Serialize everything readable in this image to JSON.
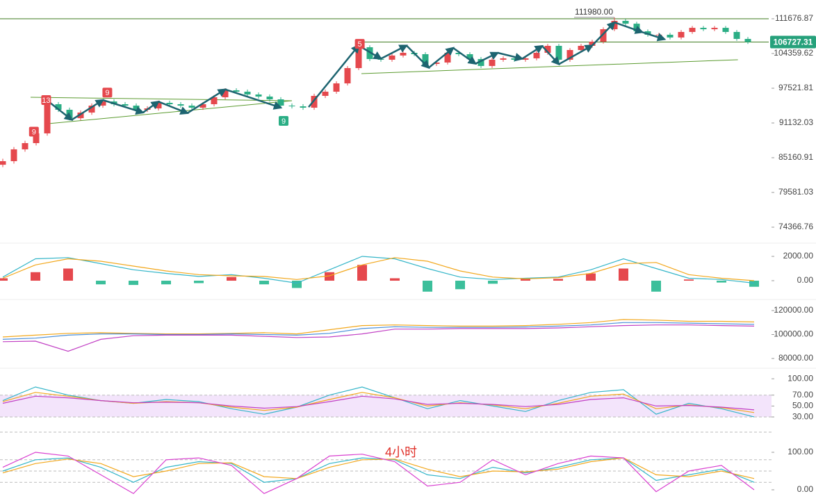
{
  "chart_data": [
    {
      "type": "candlestick",
      "open": [
        84000,
        84588,
        86560,
        87620,
        89300,
        94530,
        93510,
        91990,
        93000,
        94270,
        95040,
        94530,
        94270,
        93510,
        93760,
        94785,
        94530,
        94270,
        93890,
        94530,
        95820,
        97130,
        96870,
        96340,
        95950,
        95430,
        94270,
        94140,
        93890,
        96080,
        96870,
        98450,
        101430,
        105640,
        103240,
        103100,
        103950,
        104500,
        104220,
        102260,
        102540,
        104500,
        104220,
        103240,
        101850,
        103100,
        103380,
        103100,
        103380,
        104500,
        105930,
        103100,
        105070,
        105930,
        106800,
        109420,
        111220,
        110610,
        108980,
        108250,
        108250,
        107670,
        108840,
        109720,
        109420,
        109720,
        108840,
        107370
      ],
      "close": [
        84588,
        86560,
        87620,
        89300,
        94530,
        93510,
        91990,
        93000,
        94270,
        95040,
        94530,
        94270,
        93510,
        93760,
        94785,
        94530,
        94270,
        93890,
        94530,
        95820,
        97130,
        96870,
        96340,
        95950,
        95430,
        94270,
        94140,
        93890,
        96080,
        96870,
        98450,
        101430,
        105640,
        103240,
        103100,
        103950,
        104500,
        104220,
        102260,
        102540,
        104500,
        104220,
        103240,
        101850,
        103100,
        103380,
        103100,
        103380,
        104500,
        105930,
        103100,
        105070,
        105930,
        106800,
        109420,
        111220,
        110610,
        108980,
        108250,
        108250,
        107670,
        108840,
        109720,
        109420,
        109720,
        108840,
        107370,
        106727.31
      ],
      "high": [
        84990,
        86960,
        88020,
        89700,
        94930,
        94930,
        93910,
        93400,
        94670,
        95440,
        95440,
        94930,
        94670,
        94160,
        95185,
        95185,
        94930,
        94670,
        94930,
        96220,
        97530,
        97530,
        97270,
        96740,
        96350,
        95830,
        94670,
        94540,
        96480,
        97270,
        98850,
        101830,
        106040,
        106040,
        103640,
        104350,
        104900,
        104900,
        104620,
        102940,
        104900,
        104900,
        104620,
        103640,
        103500,
        103780,
        103780,
        103780,
        104900,
        106330,
        106330,
        105470,
        106330,
        107200,
        109820,
        111980,
        111620,
        111010,
        109380,
        108650,
        108650,
        109240,
        110120,
        110120,
        110120,
        110120,
        109240,
        107770
      ],
      "low": [
        83600,
        84190,
        86160,
        87220,
        88900,
        93110,
        91590,
        91590,
        92600,
        93870,
        94130,
        93870,
        93110,
        93110,
        93360,
        94130,
        93870,
        93490,
        93490,
        94130,
        95420,
        96470,
        95940,
        95550,
        95030,
        93870,
        93740,
        93490,
        93490,
        95680,
        96470,
        98050,
        101030,
        102840,
        102700,
        102700,
        103550,
        103820,
        101860,
        101860,
        102140,
        103820,
        102840,
        101450,
        101450,
        102700,
        102700,
        102700,
        102980,
        104100,
        102700,
        102700,
        104670,
        105530,
        106400,
        109020,
        110210,
        108580,
        107850,
        107850,
        107270,
        107270,
        108440,
        109020,
        109020,
        108440,
        106970,
        106330
      ],
      "up_color": "#e5484d",
      "down_color": "#2bae85",
      "ylim": [
        72574,
        115840
      ],
      "log_scale": true,
      "yticks": [
        111676.87,
        104359.62,
        97521.81,
        91132.03,
        85160.91,
        79581.03,
        74366.76
      ],
      "last_price": 106727.31,
      "last_price_color": "#26a17b",
      "high_label": {
        "value": 111980,
        "label": "111980.00"
      },
      "levels": [
        {
          "price": 111676.87,
          "from": -1,
          "color": "#3d7a1e"
        },
        {
          "price": 106727.31,
          "from": 32,
          "color": "#3d7a1e"
        }
      ],
      "trendlines": [
        {
          "from": [
            2.5,
            95820
          ],
          "to": [
            26,
            95170
          ],
          "color": "#5a9a2e"
        },
        {
          "from": [
            4,
            90990
          ],
          "to": [
            26,
            95170
          ],
          "color": "#5a9a2e"
        },
        {
          "from": [
            32.25,
            100340
          ],
          "to": [
            66.1,
            103100
          ],
          "color": "#5a9a2e"
        }
      ],
      "zigzag_color": "#1d6470",
      "zigzags": [
        [
          [
            4,
            95200
          ],
          [
            6.2,
            91700
          ],
          [
            9,
            95300
          ],
          [
            12.6,
            93000
          ],
          [
            14,
            95000
          ],
          [
            16.6,
            92900
          ],
          [
            20,
            97300
          ],
          [
            25,
            93900
          ]
        ],
        [
          [
            27.5,
            94000
          ],
          [
            32,
            106000
          ],
          [
            34,
            103300
          ],
          [
            36.3,
            106000
          ],
          [
            38.3,
            101500
          ],
          [
            40.5,
            105500
          ],
          [
            42.5,
            102300
          ],
          [
            44.5,
            104500
          ],
          [
            46.7,
            103300
          ],
          [
            48.5,
            105900
          ],
          [
            50,
            102200
          ],
          [
            53,
            106000
          ],
          [
            55,
            110900
          ],
          [
            57.5,
            108800
          ],
          [
            59.5,
            107300
          ]
        ]
      ],
      "markers": [
        {
          "text": "9",
          "index": 2.8,
          "price": 89600,
          "color": "#e5484d"
        },
        {
          "text": "13",
          "index": 3.9,
          "price": 95300,
          "color": "#e5484d"
        },
        {
          "text": "9",
          "index": 9.4,
          "price": 96700,
          "color": "#e5484d"
        },
        {
          "text": "5",
          "index": 32.1,
          "price": 106350,
          "color": "#e5484d"
        },
        {
          "text": "9",
          "index": 25.25,
          "price": 91500,
          "color": "#2bae85"
        }
      ]
    },
    {
      "type": "macd",
      "histogram": [
        200,
        700,
        1000,
        -300,
        -350,
        -300,
        -200,
        300,
        -300,
        -600,
        700,
        1300,
        200,
        -900,
        -700,
        -250,
        200,
        150,
        600,
        1000,
        -900,
        100,
        -150,
        -500
      ],
      "up_color": "#e5484d",
      "down_color": "#3cbf9b",
      "series": [
        {
          "color": "#33b5c8",
          "values": [
            300,
            1800,
            1900,
            1400,
            900,
            600,
            350,
            500,
            200,
            -200,
            900,
            2000,
            1800,
            1000,
            300,
            100,
            200,
            300,
            900,
            1800,
            1000,
            200,
            100,
            -200
          ]
        },
        {
          "color": "#f2a71b",
          "values": [
            200,
            1300,
            1800,
            1600,
            1200,
            800,
            500,
            400,
            350,
            100,
            400,
            1300,
            1900,
            1600,
            800,
            300,
            150,
            250,
            600,
            1400,
            1500,
            500,
            200,
            0
          ]
        }
      ],
      "ylim": [
        -1370,
        2800
      ],
      "yticks": [
        {
          "value": 2000,
          "label": "2000.00"
        },
        {
          "value": 0,
          "label": "0.00"
        }
      ]
    },
    {
      "type": "line",
      "series": [
        {
          "color": "#f2a71b",
          "values": [
            98000,
            99500,
            101000,
            101500,
            101000,
            100500,
            100500,
            101000,
            101500,
            100500,
            104000,
            107500,
            108000,
            107500,
            107000,
            107000,
            107500,
            108500,
            110000,
            112500,
            112000,
            111000,
            111000,
            110500
          ]
        },
        {
          "color": "#4a8fd9",
          "values": [
            96000,
            97000,
            99500,
            100500,
            100500,
            100000,
            100000,
            100500,
            100000,
            99500,
            101000,
            105000,
            106500,
            106000,
            106000,
            106000,
            106300,
            107000,
            108000,
            110000,
            110000,
            109500,
            109000,
            108500
          ]
        },
        {
          "color": "#c13fc4",
          "values": [
            94000,
            94500,
            86000,
            96000,
            99000,
            99500,
            99500,
            99500,
            98500,
            97500,
            98000,
            100500,
            104500,
            104500,
            105000,
            105000,
            105000,
            105500,
            106500,
            107500,
            108000,
            108000,
            107500,
            107000
          ]
        }
      ],
      "ylim": [
        74780,
        126960
      ],
      "yticks": [
        {
          "value": 120000,
          "label": "120000.00"
        },
        {
          "value": 100000,
          "label": "100000.00"
        },
        {
          "value": 80000,
          "label": "80000.00"
        }
      ]
    },
    {
      "type": "line",
      "band": [
        30,
        70
      ],
      "band_color": "#f3e4fb",
      "series": [
        {
          "color": "#33b5c8",
          "values": [
            60,
            85,
            70,
            60,
            55,
            62,
            58,
            45,
            35,
            48,
            70,
            85,
            65,
            45,
            60,
            50,
            40,
            60,
            75,
            80,
            35,
            55,
            45,
            30
          ]
        },
        {
          "color": "#f2a71b",
          "values": [
            58,
            75,
            68,
            60,
            55,
            58,
            56,
            48,
            42,
            48,
            62,
            75,
            65,
            50,
            56,
            52,
            45,
            55,
            68,
            72,
            45,
            52,
            47,
            38
          ]
        },
        {
          "color": "#c13fc4",
          "values": [
            55,
            68,
            65,
            60,
            56,
            57,
            56,
            50,
            46,
            49,
            58,
            68,
            63,
            53,
            55,
            53,
            49,
            53,
            62,
            65,
            50,
            51,
            48,
            43
          ]
        }
      ],
      "ylim": [
        11,
        113
      ],
      "yticks": [
        {
          "value": 100,
          "label": "100.00"
        },
        {
          "value": 70,
          "label": "70.00"
        },
        {
          "value": 50,
          "label": "50.00"
        },
        {
          "value": 30,
          "label": "30.00"
        }
      ]
    },
    {
      "type": "line",
      "guides": [
        80,
        50,
        20
      ],
      "annotation": "4小时",
      "series": [
        {
          "color": "#33b5c8",
          "values": [
            50,
            80,
            85,
            60,
            20,
            60,
            75,
            70,
            20,
            30,
            70,
            85,
            80,
            40,
            30,
            60,
            45,
            60,
            80,
            85,
            25,
            40,
            55,
            20
          ]
        },
        {
          "color": "#f2a71b",
          "values": [
            45,
            70,
            82,
            70,
            35,
            50,
            70,
            72,
            35,
            30,
            60,
            80,
            82,
            55,
            35,
            50,
            48,
            55,
            75,
            85,
            40,
            35,
            50,
            30
          ]
        },
        {
          "color": "#d93fd0",
          "values": [
            60,
            100,
            90,
            40,
            -10,
            80,
            85,
            65,
            -10,
            30,
            90,
            95,
            75,
            10,
            20,
            80,
            40,
            70,
            90,
            85,
            -5,
            50,
            65,
            0
          ]
        }
      ],
      "ylim": [
        -27.8,
        138.9
      ],
      "yticks": [
        {
          "value": 100,
          "label": "100.00"
        },
        {
          "value": 0,
          "label": "0.00"
        }
      ]
    }
  ]
}
